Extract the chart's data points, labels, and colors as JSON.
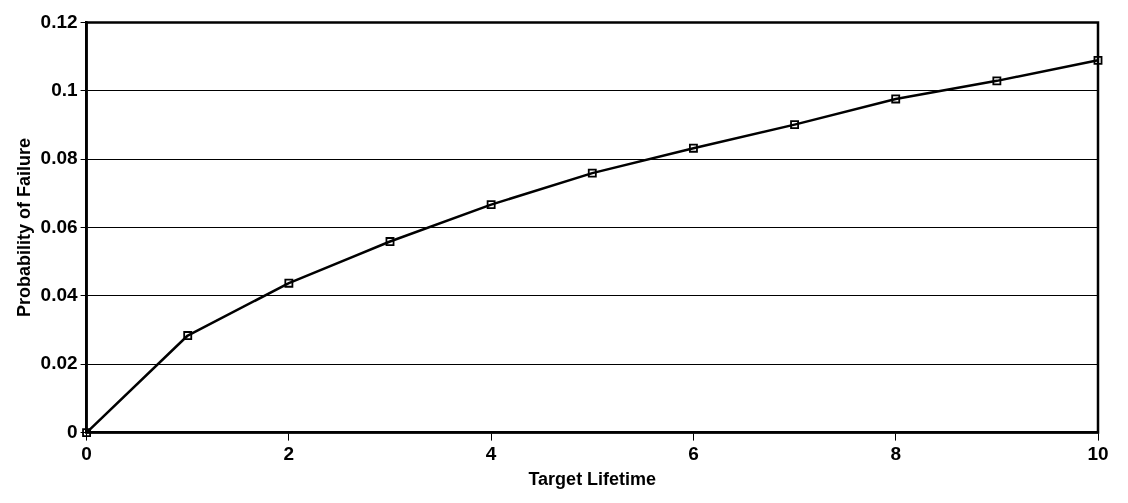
{
  "chart_data": {
    "type": "line",
    "xlabel": "Target Lifetime",
    "ylabel": "Probability of Failure",
    "x": [
      0,
      1,
      2,
      3,
      4,
      5,
      6,
      7,
      8,
      9,
      10
    ],
    "series": [
      {
        "color": "#000000",
        "values": [
          0,
          0.0284,
          0.0437,
          0.0559,
          0.0667,
          0.0759,
          0.0832,
          0.0901,
          0.0976,
          0.1029,
          0.1089
        ]
      }
    ],
    "xlim": [
      0,
      10
    ],
    "xticks": [
      0,
      2,
      4,
      6,
      8,
      10
    ],
    "ylim": [
      0,
      0.12
    ],
    "yticks": [
      0,
      0.02,
      0.04,
      0.06,
      0.08,
      0.1,
      0.12
    ],
    "grid": "y",
    "legend": false,
    "marker": "square",
    "line_style": "solid"
  }
}
